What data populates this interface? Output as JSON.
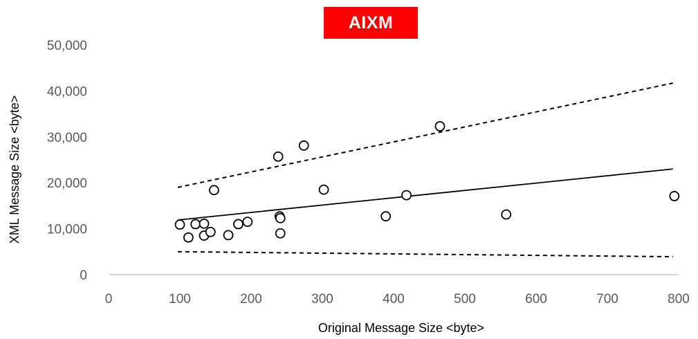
{
  "chart_data": {
    "type": "scatter",
    "title": "AIXM",
    "xlabel": "Original Message Size <byte>",
    "ylabel": "XML Message Size <byte>",
    "xlim": [
      0,
      800
    ],
    "ylim": [
      0,
      50000
    ],
    "x_ticks": [
      "0",
      "100",
      "200",
      "300",
      "400",
      "500",
      "600",
      "700",
      "800"
    ],
    "y_ticks": [
      "0",
      "10,000",
      "20,000",
      "30,000",
      "40,000",
      "50,000"
    ],
    "grid": false,
    "colors": {
      "title_background": "#ff0000",
      "title_text": "#ffffff",
      "markers": "#000000",
      "tick_labels": "#595959"
    },
    "points": [
      {
        "x": 100,
        "y": 10900
      },
      {
        "x": 112,
        "y": 8100
      },
      {
        "x": 122,
        "y": 11000
      },
      {
        "x": 134,
        "y": 11100
      },
      {
        "x": 134,
        "y": 8500
      },
      {
        "x": 143,
        "y": 9300
      },
      {
        "x": 148,
        "y": 18400
      },
      {
        "x": 168,
        "y": 8600
      },
      {
        "x": 182,
        "y": 11000
      },
      {
        "x": 195,
        "y": 11500
      },
      {
        "x": 238,
        "y": 25700
      },
      {
        "x": 240,
        "y": 12700
      },
      {
        "x": 241,
        "y": 12300
      },
      {
        "x": 241,
        "y": 9000
      },
      {
        "x": 274,
        "y": 28100
      },
      {
        "x": 302,
        "y": 18500
      },
      {
        "x": 389,
        "y": 12700
      },
      {
        "x": 418,
        "y": 17300
      },
      {
        "x": 465,
        "y": 32300
      },
      {
        "x": 558,
        "y": 13100
      },
      {
        "x": 794,
        "y": 17100
      }
    ],
    "lines": [
      {
        "style": "solid",
        "x": [
          97,
          792
        ],
        "y": [
          11900,
          23000
        ]
      },
      {
        "style": "dashed",
        "x": [
          97,
          792
        ],
        "y": [
          19000,
          41700
        ]
      },
      {
        "style": "dashed",
        "x": [
          97,
          792
        ],
        "y": [
          5000,
          3900
        ]
      }
    ]
  }
}
